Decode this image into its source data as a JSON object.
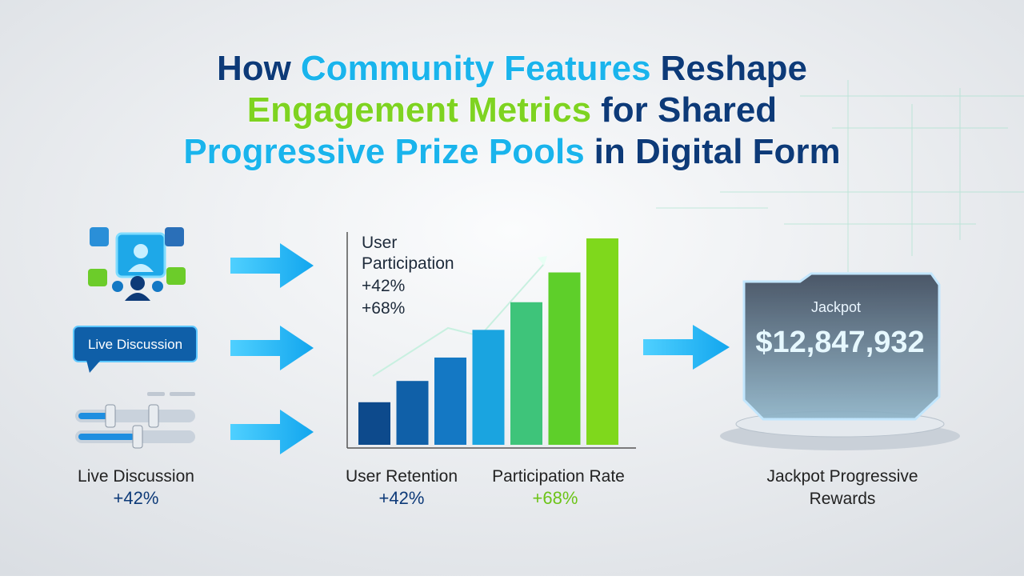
{
  "header": {
    "title_lines": [
      [
        {
          "text": "How",
          "color": "#0d3a78"
        },
        {
          "text": "Community Features",
          "color": "#1ab4ec"
        },
        {
          "text": "Reshape",
          "color": "#0d3a78"
        }
      ],
      [
        {
          "text": "Engagement Metrics",
          "color": "#7ed321"
        },
        {
          "text": "for Shared",
          "color": "#0d3a78"
        }
      ],
      [
        {
          "text": "Progressive Prize Pools",
          "color": "#1ab4ec"
        },
        {
          "text": "in Digital Form",
          "color": "#0d3a78"
        }
      ]
    ]
  },
  "community": {
    "bubble_label": "Live Discussion",
    "caption": "Live Discussion",
    "change": "+42%"
  },
  "chart": {
    "type": "bar",
    "annotation": [
      "User Participation",
      "+42%",
      "+68%"
    ],
    "values": [
      20,
      30,
      41,
      54,
      67,
      81,
      97
    ],
    "colors": [
      "#0d4a8c",
      "#1060a8",
      "#1478c4",
      "#1aa4e0",
      "#3ec47a",
      "#5ecf2a",
      "#7fd81c"
    ],
    "ylim": [
      0,
      100
    ],
    "captions": [
      {
        "label": "User Retention",
        "change": "+42%",
        "color": "#0d3a78"
      },
      {
        "label": "Participation Rate",
        "change": "+68%",
        "color": "#6cc418"
      }
    ]
  },
  "jackpot": {
    "label": "Jackpot",
    "amount": "$12,847,932",
    "caption": [
      "Jackpot Progressive",
      "Rewards"
    ]
  }
}
